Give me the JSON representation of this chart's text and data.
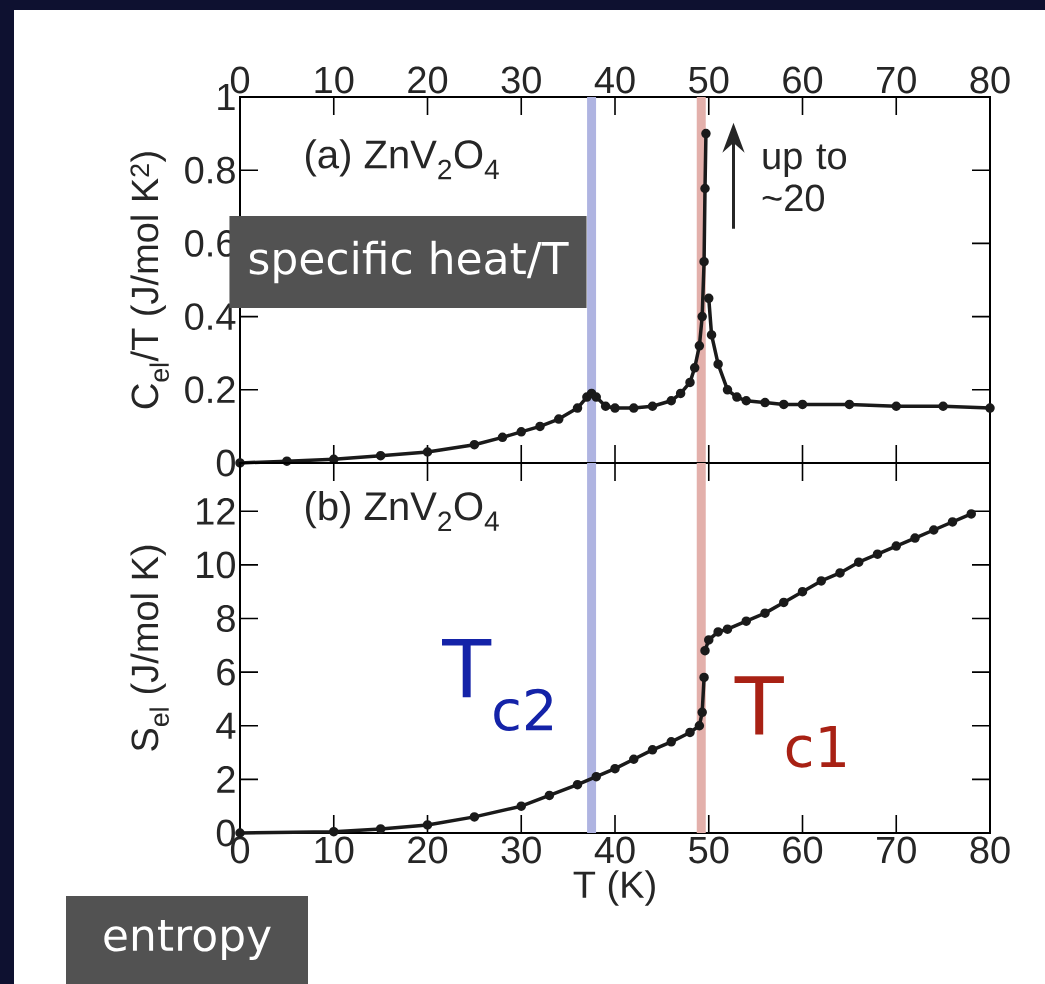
{
  "chart_data": [
    {
      "type": "line",
      "marker": "circle",
      "ylabel": "C$_{el}$/T (J/mol K$^{2}$)",
      "x": [
        0,
        5,
        10,
        15,
        20,
        25,
        28,
        30,
        32,
        34,
        36,
        37,
        37.5,
        38,
        39,
        40,
        42,
        44,
        46,
        47,
        48,
        48.5,
        49,
        49.3,
        49.5,
        49.6,
        49.7,
        49.8,
        50,
        50.3,
        51,
        52,
        53,
        54,
        56,
        58,
        60,
        65,
        70,
        75,
        80
      ],
      "series": [
        {
          "color": "#1a1a1a",
          "values": [
            0.0,
            0.005,
            0.01,
            0.02,
            0.03,
            0.05,
            0.07,
            0.085,
            0.1,
            0.12,
            0.15,
            0.18,
            0.19,
            0.18,
            0.155,
            0.15,
            0.15,
            0.155,
            0.17,
            0.19,
            0.22,
            0.26,
            0.32,
            0.4,
            0.55,
            0.75,
            0.9,
            null,
            0.45,
            0.35,
            0.27,
            0.2,
            0.18,
            0.17,
            0.165,
            0.16,
            0.16,
            0.16,
            0.155,
            0.155,
            0.15
          ]
        }
      ],
      "xlim": [
        0,
        80
      ],
      "xticks": [
        0,
        10,
        20,
        30,
        40,
        50,
        60,
        70,
        80
      ],
      "ylim": [
        0,
        1
      ],
      "yticks": [
        0,
        0.2,
        0.4,
        0.6,
        0.8,
        1
      ],
      "annotations": [
        "(a) ZnV$_{2}$O$_{4}$",
        "up to ~20",
        "specific heat/T"
      ],
      "ref_lines": [
        {
          "axis": "x",
          "value": 37.5,
          "color": "#afb4e1"
        },
        {
          "axis": "x",
          "value": 49.2,
          "color": "#e3b0ab"
        }
      ]
    },
    {
      "type": "line",
      "marker": "circle",
      "ylabel": "S$_{el}$ (J/mol K)",
      "xlabel": "T (K)",
      "x": [
        0,
        10,
        15,
        20,
        25,
        30,
        33,
        36,
        38,
        40,
        42,
        44,
        46,
        48,
        49,
        49.3,
        49.5,
        49.55,
        49.6,
        50,
        51,
        52,
        54,
        56,
        58,
        60,
        62,
        64,
        66,
        68,
        70,
        72,
        74,
        76,
        78
      ],
      "series": [
        {
          "color": "#1a1a1a",
          "values": [
            0,
            0.05,
            0.15,
            0.3,
            0.6,
            1.0,
            1.4,
            1.8,
            2.1,
            2.4,
            2.75,
            3.1,
            3.4,
            3.75,
            4.0,
            4.5,
            5.8,
            null,
            6.8,
            7.2,
            7.5,
            7.6,
            7.9,
            8.2,
            8.6,
            9.0,
            9.4,
            9.7,
            10.1,
            10.4,
            10.7,
            11.0,
            11.3,
            11.6,
            11.9
          ]
        }
      ],
      "xlim": [
        0,
        80
      ],
      "xticks": [
        0,
        10,
        20,
        30,
        40,
        50,
        60,
        70,
        80
      ],
      "ylim": [
        0,
        13.8
      ],
      "yticks": [
        0,
        2,
        4,
        6,
        8,
        10,
        12
      ],
      "annotations": [
        "(b) ZnV$_{2}$O$_{4}$",
        "entropy"
      ],
      "ref_lines": [
        {
          "axis": "x",
          "value": 37.5,
          "color": "#afb4e1",
          "label": "T$_{c2}$"
        },
        {
          "axis": "x",
          "value": 49.2,
          "color": "#e3b0ab",
          "label": "T$_{c1}$"
        }
      ]
    }
  ]
}
